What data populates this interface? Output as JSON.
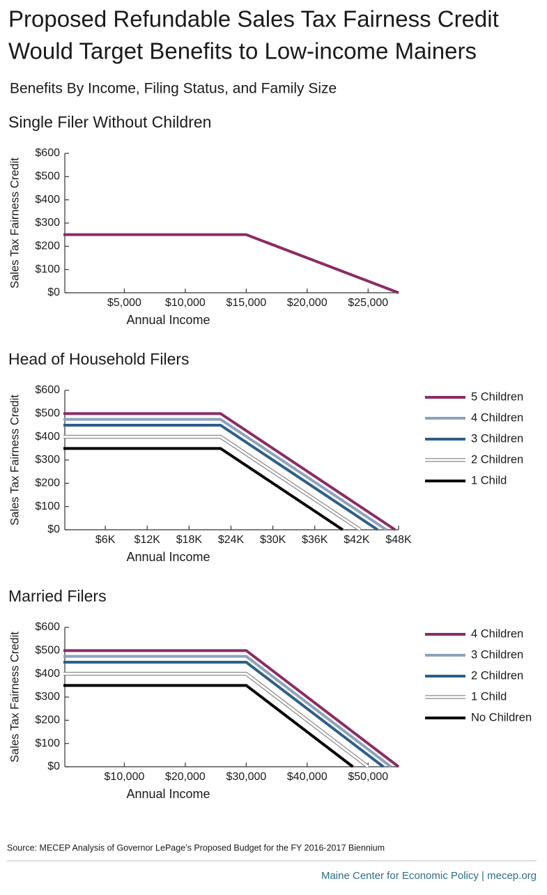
{
  "title": [
    "Proposed Refundable Sales Tax Fairness Credit",
    "Would Target Benefits to Low-income Mainers"
  ],
  "subtitle": "Benefits By Income, Filing Status, and Family Size",
  "chart_data": [
    {
      "type": "line",
      "title": "Single Filer Without Children",
      "x_label": "Annual Income",
      "y_label": "Sales Tax Fairness Credit",
      "xlim": [
        0,
        27500
      ],
      "ylim": [
        0,
        600
      ],
      "xticks": [
        {
          "value": 5000,
          "label": "$5,000"
        },
        {
          "value": 10000,
          "label": "$10,000"
        },
        {
          "value": 15000,
          "label": "$15,000"
        },
        {
          "value": 20000,
          "label": "$20,000"
        },
        {
          "value": 25000,
          "label": "$25,000"
        }
      ],
      "yticks": [
        {
          "value": 0,
          "label": "$0"
        },
        {
          "value": 100,
          "label": "$100"
        },
        {
          "value": 200,
          "label": "$200"
        },
        {
          "value": 300,
          "label": "$300"
        },
        {
          "value": 400,
          "label": "$400"
        },
        {
          "value": 500,
          "label": "$500"
        },
        {
          "value": 600,
          "label": "$600"
        }
      ],
      "series": [
        {
          "color": "#8b2c63",
          "x": [
            0,
            15000,
            27500
          ],
          "values": [
            250,
            250,
            0
          ]
        }
      ]
    },
    {
      "type": "line",
      "title": "Head of Household Filers",
      "x_label": "Annual Income",
      "y_label": "Sales Tax Fairness Credit",
      "xlim": [
        0,
        48000
      ],
      "ylim": [
        0,
        600
      ],
      "xticks": [
        {
          "value": 6000,
          "label": "$6K"
        },
        {
          "value": 12000,
          "label": "$12K"
        },
        {
          "value": 18000,
          "label": "$18K"
        },
        {
          "value": 24000,
          "label": "$24K"
        },
        {
          "value": 30000,
          "label": "$30K"
        },
        {
          "value": 36000,
          "label": "$36K"
        },
        {
          "value": 42000,
          "label": "$42K"
        },
        {
          "value": 48000,
          "label": "$48K"
        }
      ],
      "yticks": [
        {
          "value": 0,
          "label": "$0"
        },
        {
          "value": 100,
          "label": "$100"
        },
        {
          "value": 200,
          "label": "$200"
        },
        {
          "value": 300,
          "label": "$300"
        },
        {
          "value": 400,
          "label": "$400"
        },
        {
          "value": 500,
          "label": "$500"
        },
        {
          "value": 600,
          "label": "$600"
        }
      ],
      "series": [
        {
          "name": "5 Children",
          "color": "#8b2c63",
          "x": [
            0,
            22500,
            47500
          ],
          "values": [
            500,
            500,
            0
          ]
        },
        {
          "name": "4 Children",
          "color": "#8da2bd",
          "x": [
            0,
            22500,
            46250
          ],
          "values": [
            475,
            475,
            0
          ]
        },
        {
          "name": "3 Children",
          "color": "#2d5f8a",
          "x": [
            0,
            22500,
            45000
          ],
          "values": [
            450,
            450,
            0
          ]
        },
        {
          "name": "2 Children",
          "color": "#ffffff",
          "outline_color": "#8a8a8a",
          "x": [
            0,
            22500,
            42500
          ],
          "values": [
            400,
            400,
            0
          ]
        },
        {
          "name": "1 Child",
          "color": "#000000",
          "x": [
            0,
            22500,
            40000
          ],
          "values": [
            350,
            350,
            0
          ]
        }
      ]
    },
    {
      "type": "line",
      "title": "Married Filers",
      "x_label": "Annual Income",
      "y_label": "Sales Tax Fairness Credit",
      "xlim": [
        0,
        55000
      ],
      "ylim": [
        0,
        600
      ],
      "xticks": [
        {
          "value": 10000,
          "label": "$10,000"
        },
        {
          "value": 20000,
          "label": "$20,000"
        },
        {
          "value": 30000,
          "label": "$30,000"
        },
        {
          "value": 40000,
          "label": "$40,000"
        },
        {
          "value": 50000,
          "label": "$50,000"
        }
      ],
      "yticks": [
        {
          "value": 0,
          "label": "$0"
        },
        {
          "value": 100,
          "label": "$100"
        },
        {
          "value": 200,
          "label": "$200"
        },
        {
          "value": 300,
          "label": "$300"
        },
        {
          "value": 400,
          "label": "$400"
        },
        {
          "value": 500,
          "label": "$500"
        },
        {
          "value": 600,
          "label": "$600"
        }
      ],
      "series": [
        {
          "name": "4 Children",
          "color": "#8b2c63",
          "x": [
            0,
            30000,
            55000
          ],
          "values": [
            500,
            500,
            0
          ]
        },
        {
          "name": "3 Children",
          "color": "#8da2bd",
          "x": [
            0,
            30000,
            53750
          ],
          "values": [
            475,
            475,
            0
          ]
        },
        {
          "name": "2 Children",
          "color": "#2d5f8a",
          "x": [
            0,
            30000,
            52500
          ],
          "values": [
            450,
            450,
            0
          ]
        },
        {
          "name": "1 Child",
          "color": "#ffffff",
          "outline_color": "#8a8a8a",
          "x": [
            0,
            30000,
            50000
          ],
          "values": [
            400,
            400,
            0
          ]
        },
        {
          "name": "No Children",
          "color": "#000000",
          "x": [
            0,
            30000,
            47500
          ],
          "values": [
            350,
            350,
            0
          ]
        }
      ]
    }
  ],
  "source": "Source: MECEP Analysis of Governor LePage’s Proposed Budget for the FY 2016-2017 Biennium",
  "footer": "Maine Center for Economic Policy | mecep.org"
}
